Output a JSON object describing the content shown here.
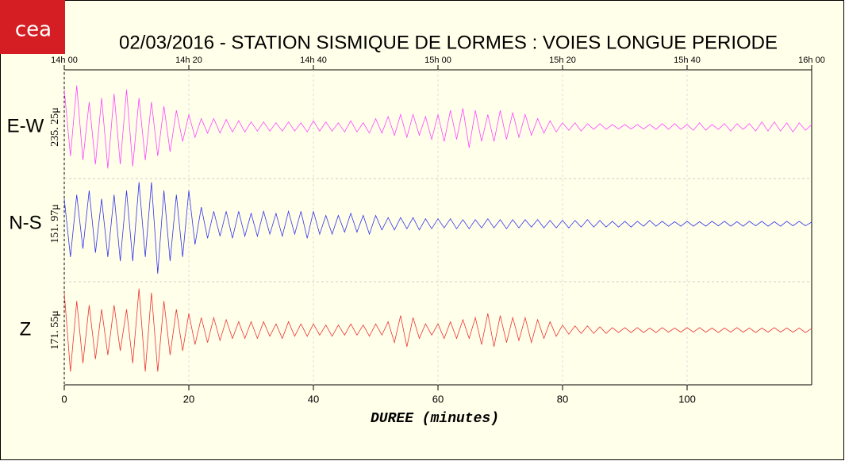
{
  "chart_data": {
    "type": "seismogram",
    "logo": "cea",
    "title": "02/03/2016  -  STATION SISMIQUE DE LORMES : VOIES LONGUE PERIODE",
    "xlabel": "DUREE (minutes)",
    "xlim": [
      0,
      120
    ],
    "xticks": [
      0,
      20,
      40,
      60,
      80,
      100
    ],
    "top_ticks": [
      {
        "value": 0,
        "label": "14h 00"
      },
      {
        "value": 20,
        "label": "14h 20"
      },
      {
        "value": 40,
        "label": "14h 40"
      },
      {
        "value": 60,
        "label": "15h 00"
      },
      {
        "value": 80,
        "label": "15h 20"
      },
      {
        "value": 100,
        "label": "15h 40"
      },
      {
        "value": 120,
        "label": "16h 00"
      }
    ],
    "ylim": [
      -1.3,
      1.3
    ],
    "grid": true,
    "x": [
      0,
      1,
      2,
      3,
      4,
      5,
      6,
      7,
      8,
      9,
      10,
      11,
      12,
      13,
      14,
      15,
      16,
      17,
      18,
      19,
      20,
      21,
      22,
      23,
      24,
      25,
      26,
      27,
      28,
      29,
      30,
      31,
      32,
      33,
      34,
      35,
      36,
      37,
      38,
      39,
      40,
      41,
      42,
      43,
      44,
      45,
      46,
      47,
      48,
      49,
      50,
      51,
      52,
      53,
      54,
      55,
      56,
      57,
      58,
      59,
      60,
      61,
      62,
      63,
      64,
      65,
      66,
      67,
      68,
      69,
      70,
      71,
      72,
      73,
      74,
      75,
      76,
      77,
      78,
      79,
      80,
      81,
      82,
      83,
      84,
      85,
      86,
      87,
      88,
      89,
      90,
      91,
      92,
      93,
      94,
      95,
      96,
      97,
      98,
      99,
      100,
      101,
      102,
      103,
      104,
      105,
      106,
      107,
      108,
      109,
      110,
      111,
      112,
      113,
      114,
      115,
      116,
      117,
      118,
      119,
      120
    ],
    "series": [
      {
        "name": "E-W",
        "scale_label": "235. 25μ",
        "color": "#ff44ff",
        "values": [
          0.9,
          -0.7,
          1.0,
          -0.8,
          0.6,
          -0.9,
          0.7,
          -1.0,
          0.8,
          -0.9,
          0.9,
          -0.95,
          0.7,
          -0.8,
          0.6,
          -0.7,
          0.5,
          -0.6,
          0.4,
          -0.35,
          0.3,
          -0.25,
          0.2,
          -0.15,
          0.2,
          -0.15,
          0.18,
          -0.12,
          0.15,
          -0.12,
          0.12,
          -0.1,
          0.12,
          -0.1,
          0.1,
          -0.1,
          0.12,
          -0.1,
          0.1,
          -0.12,
          0.15,
          -0.1,
          0.12,
          -0.1,
          0.1,
          -0.12,
          0.15,
          -0.12,
          0.1,
          -0.15,
          0.2,
          -0.15,
          0.25,
          -0.2,
          0.3,
          -0.25,
          0.3,
          -0.2,
          0.25,
          -0.3,
          0.3,
          -0.35,
          0.4,
          -0.3,
          0.45,
          -0.5,
          0.4,
          -0.35,
          0.3,
          -0.35,
          0.4,
          -0.3,
          0.35,
          -0.25,
          0.3,
          -0.2,
          0.2,
          -0.15,
          0.15,
          -0.12,
          0.1,
          -0.08,
          0.1,
          -0.1,
          0.08,
          -0.06,
          0.08,
          -0.06,
          0.06,
          -0.05,
          0.06,
          -0.05,
          0.06,
          -0.05,
          0.06,
          -0.06,
          0.08,
          -0.06,
          0.08,
          -0.06,
          0.06,
          -0.08,
          0.1,
          -0.08,
          0.06,
          -0.06,
          0.08,
          -0.1,
          0.08,
          -0.06,
          0.08,
          -0.1,
          0.12,
          -0.1,
          0.12,
          -0.1,
          0.1,
          -0.12,
          0.1,
          -0.08,
          0.06
        ]
      },
      {
        "name": "N-S",
        "scale_label": "151. 97μ",
        "color": "#3333ee",
        "values": [
          0.6,
          -0.8,
          0.7,
          -0.6,
          0.8,
          -0.7,
          0.6,
          -0.8,
          0.7,
          -0.9,
          0.8,
          -0.9,
          1.0,
          -0.8,
          1.0,
          -1.2,
          0.8,
          -0.9,
          0.7,
          -0.8,
          0.8,
          -0.5,
          0.4,
          -0.35,
          0.3,
          -0.3,
          0.3,
          -0.35,
          0.3,
          -0.3,
          0.25,
          -0.3,
          0.3,
          -0.25,
          0.25,
          -0.3,
          0.3,
          -0.25,
          0.3,
          -0.35,
          0.3,
          -0.25,
          0.2,
          -0.25,
          0.2,
          -0.2,
          0.25,
          -0.2,
          0.2,
          -0.25,
          0.2,
          -0.15,
          0.15,
          -0.15,
          0.15,
          -0.12,
          0.15,
          -0.15,
          0.12,
          -0.12,
          0.12,
          -0.1,
          0.12,
          -0.12,
          0.1,
          -0.12,
          0.1,
          -0.1,
          0.12,
          -0.1,
          0.1,
          -0.12,
          0.1,
          -0.1,
          0.1,
          -0.08,
          0.1,
          -0.1,
          0.08,
          -0.1,
          0.08,
          -0.1,
          0.08,
          -0.08,
          0.1,
          -0.08,
          0.08,
          -0.08,
          0.06,
          -0.08,
          0.06,
          -0.08,
          0.06,
          -0.06,
          0.08,
          -0.06,
          0.06,
          -0.06,
          0.05,
          -0.06,
          0.06,
          -0.06,
          0.05,
          -0.06,
          0.06,
          -0.05,
          0.06,
          -0.06,
          0.05,
          -0.06,
          0.06,
          -0.05,
          0.06,
          -0.06,
          0.05,
          -0.06,
          0.06,
          -0.05,
          0.06,
          -0.05,
          0.04
        ]
      },
      {
        "name": "Z",
        "scale_label": "171. 55μ",
        "color": "#ee3333",
        "values": [
          0.9,
          -1.0,
          0.7,
          -0.8,
          0.6,
          -0.7,
          0.5,
          -0.6,
          0.6,
          -0.5,
          0.5,
          -0.8,
          1.0,
          -1.0,
          0.9,
          -1.0,
          0.7,
          -0.6,
          0.5,
          -0.5,
          0.4,
          -0.35,
          0.3,
          -0.3,
          0.3,
          -0.25,
          0.25,
          -0.2,
          0.2,
          -0.2,
          0.2,
          -0.2,
          0.2,
          -0.15,
          0.15,
          -0.2,
          0.2,
          -0.15,
          0.15,
          -0.15,
          0.15,
          -0.12,
          0.12,
          -0.15,
          0.12,
          -0.12,
          0.15,
          -0.12,
          0.12,
          -0.15,
          0.15,
          -0.12,
          0.2,
          -0.3,
          0.35,
          -0.4,
          0.3,
          -0.2,
          0.15,
          -0.12,
          0.15,
          -0.2,
          0.2,
          -0.2,
          0.25,
          -0.2,
          0.3,
          -0.35,
          0.4,
          -0.4,
          0.35,
          -0.3,
          0.3,
          -0.25,
          0.3,
          -0.3,
          0.25,
          -0.2,
          0.2,
          -0.15,
          0.12,
          -0.1,
          0.1,
          -0.08,
          0.1,
          -0.08,
          0.08,
          -0.08,
          0.06,
          -0.06,
          0.06,
          -0.06,
          0.06,
          -0.06,
          0.05,
          -0.06,
          0.06,
          -0.05,
          0.05,
          -0.05,
          0.06,
          -0.05,
          0.06,
          -0.05,
          0.05,
          -0.06,
          0.05,
          -0.05,
          0.06,
          -0.05,
          0.05,
          -0.06,
          0.05,
          -0.05,
          0.06,
          -0.05,
          0.05,
          -0.05,
          0.05,
          -0.06,
          0.04
        ]
      }
    ]
  }
}
